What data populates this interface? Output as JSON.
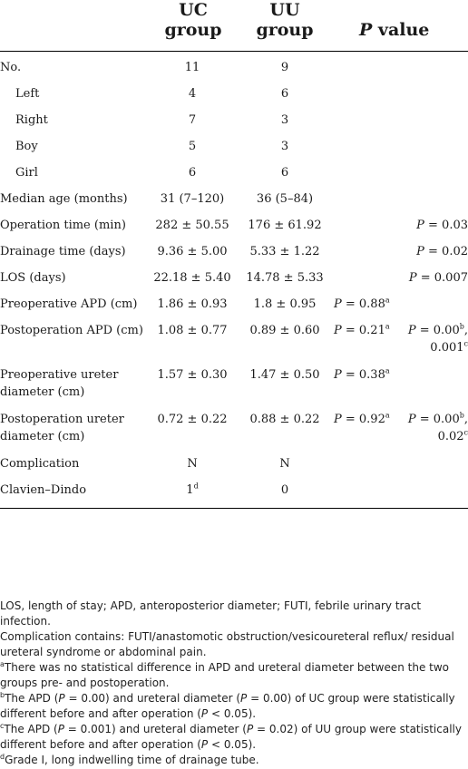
{
  "header": {
    "col_uc": "UC\ngroup",
    "col_uu": "UU\ngroup",
    "col_p_italic": "P",
    "col_p_rest": " value"
  },
  "rows": [
    {
      "label": "No.",
      "uc": "11",
      "uu": "9",
      "p1": "",
      "p2": ""
    },
    {
      "label": "Left",
      "uc": "4",
      "uu": "6",
      "p1": "",
      "p2": ""
    },
    {
      "label": "Right",
      "uc": "7",
      "uu": "3",
      "p1": "",
      "p2": ""
    },
    {
      "label": "Boy",
      "uc": "5",
      "uu": "3",
      "p1": "",
      "p2": ""
    },
    {
      "label": "Girl",
      "uc": "6",
      "uu": "6",
      "p1": "",
      "p2": ""
    },
    {
      "label": "Median age (months)",
      "uc": "31 (7–120)",
      "uu": "36 (5–84)",
      "p1": "",
      "p2": ""
    },
    {
      "label": "Operation time (min)",
      "uc": "282 ± 50.55",
      "uu": "176 ± 61.92",
      "p1": "",
      "p2": "P = 0.03"
    },
    {
      "label": "Drainage time (days)",
      "uc": "9.36 ± 5.00",
      "uu": "5.33 ± 1.22",
      "p1": "",
      "p2": "P = 0.02"
    },
    {
      "label": "LOS (days)",
      "uc": "22.18 ± 5.40",
      "uu": "14.78 ± 5.33",
      "p1": "",
      "p2": "P = 0.007"
    },
    {
      "label": "Preoperative APD (cm)",
      "uc": "1.86 ± 0.93",
      "uu": "1.8 ± 0.95",
      "p1": "P  = 0.88",
      "p1_sup": "a",
      "p2": ""
    },
    {
      "label": "Postoperation APD (cm)",
      "uc": "1.08 ± 0.77",
      "uu": "0.89 ± 0.60",
      "p1": "P  = 0.21",
      "p1_sup": "a",
      "p2": "P = 0.00",
      "p2_sup": "b",
      "p2_tail": ",",
      "p2_line2": "0.001",
      "p2_line2_sup": "c"
    },
    {
      "label": "Preoperative ureter",
      "label_line2": "diameter (cm)",
      "uc": "1.57 ± 0.30",
      "uu": "1.47 ± 0.50",
      "p1": "P  = 0.38",
      "p1_sup": "a",
      "p2": ""
    },
    {
      "label": "Postoperation ureter",
      "label_line2": "diameter (cm)",
      "uc": "0.72 ± 0.22",
      "uu": "0.88 ± 0.22",
      "p1": "P = 0.92",
      "p1_sup": "a",
      "p2": "P = 0.00",
      "p2_sup": "b",
      "p2_tail": ",",
      "p2_line2": "0.02",
      "p2_line2_sup": "c"
    },
    {
      "label": "Complication",
      "uc": "N",
      "uu": "N",
      "p1": "",
      "p2": ""
    },
    {
      "label": "Clavien–Dindo",
      "uc": "1",
      "uc_sup": "d",
      "uu": "0",
      "p1": "",
      "p2": ""
    }
  ],
  "notes": {
    "n1": "LOS, length of stay; APD, anteroposterior diameter; FUTI, febrile urinary tract infection.",
    "n2": "Complication contains: FUTI/anastomotic obstruction/vesicoureteral reflux/ residual ureteral syndrome or abdominal pain.",
    "n3_sup": "a",
    "n3": "There was no statistical difference in APD and ureteral diameter between the two groups pre- and postoperation.",
    "n4_sup": "b",
    "n4_a": "The APD (",
    "n4_p1": "P",
    "n4_b": " = 0.00) and ureteral diameter (",
    "n4_p2": "P",
    "n4_c": " = 0.00) of UC group were statistically different before and after operation (",
    "n4_p3": "P",
    "n4_d": " < 0.05).",
    "n5_sup": "c",
    "n5_a": "The APD (",
    "n5_p1": "P",
    "n5_b": " = 0.001) and ureteral diameter (",
    "n5_p2": "P",
    "n5_c": " = 0.02) of UU group were statistically different before and after operation (",
    "n5_p3": "P",
    "n5_d": " < 0.05).",
    "n6_sup": "d",
    "n6": "Grade I, long indwelling time of drainage tube."
  }
}
